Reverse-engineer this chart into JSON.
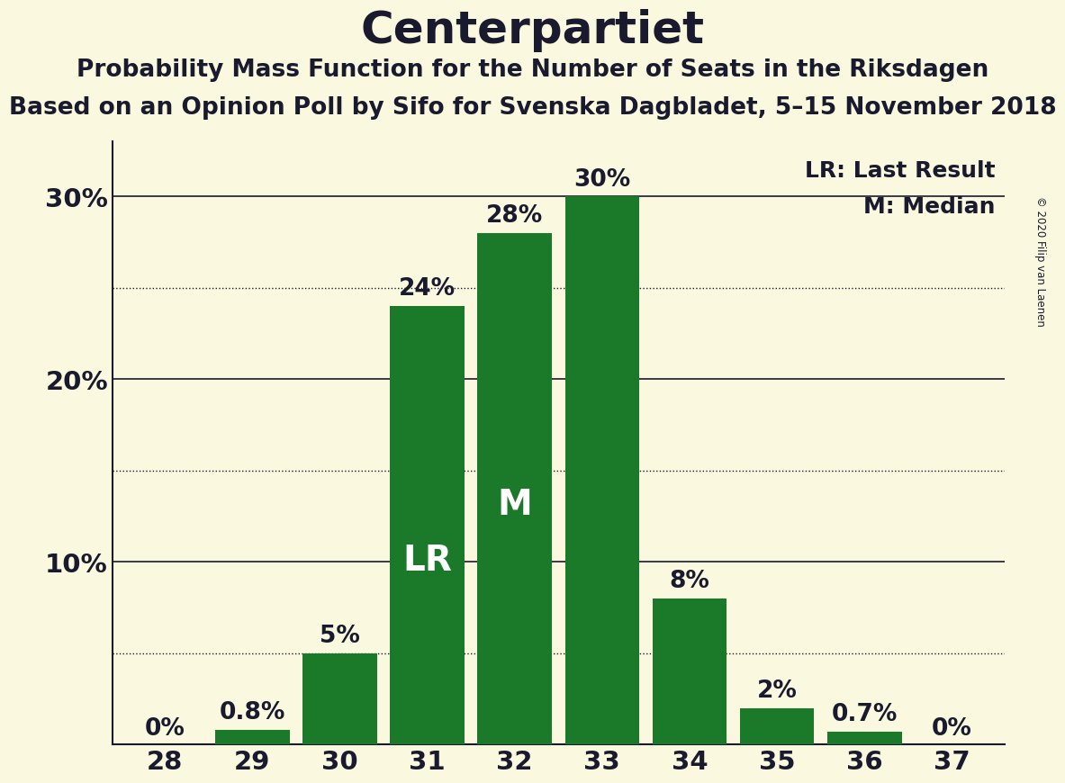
{
  "title": "Centerpartiet",
  "subtitle1": "Probability Mass Function for the Number of Seats in the Riksdagen",
  "subtitle2": "Based on an Opinion Poll by Sifo for Svenska Dagbladet, 5–15 November 2018",
  "copyright": "© 2020 Filip van Laenen",
  "categories": [
    28,
    29,
    30,
    31,
    32,
    33,
    34,
    35,
    36,
    37
  ],
  "values": [
    0.0,
    0.8,
    5.0,
    24.0,
    28.0,
    30.0,
    8.0,
    2.0,
    0.7,
    0.0
  ],
  "bar_color": "#1a7a2a",
  "background_color": "#faf9e0",
  "text_color": "#1a1a2e",
  "label_texts": [
    "0%",
    "0.8%",
    "5%",
    "24%",
    "28%",
    "30%",
    "8%",
    "2%",
    "0.7%",
    "0%"
  ],
  "LR_bar": 31,
  "M_bar": 32,
  "ylim": [
    0,
    33
  ],
  "yticks": [
    0,
    10,
    20,
    30
  ],
  "ytick_labels": [
    "",
    "10%",
    "20%",
    "30%"
  ],
  "solid_lines": [
    10,
    20,
    30
  ],
  "dotted_lines": [
    5,
    15,
    25
  ],
  "legend_LR": "LR: Last Result",
  "legend_M": "M: Median",
  "title_fontsize": 36,
  "subtitle_fontsize": 19,
  "axis_fontsize": 21,
  "bar_label_fontsize": 19,
  "inner_label_fontsize": 28,
  "legend_fontsize": 18
}
